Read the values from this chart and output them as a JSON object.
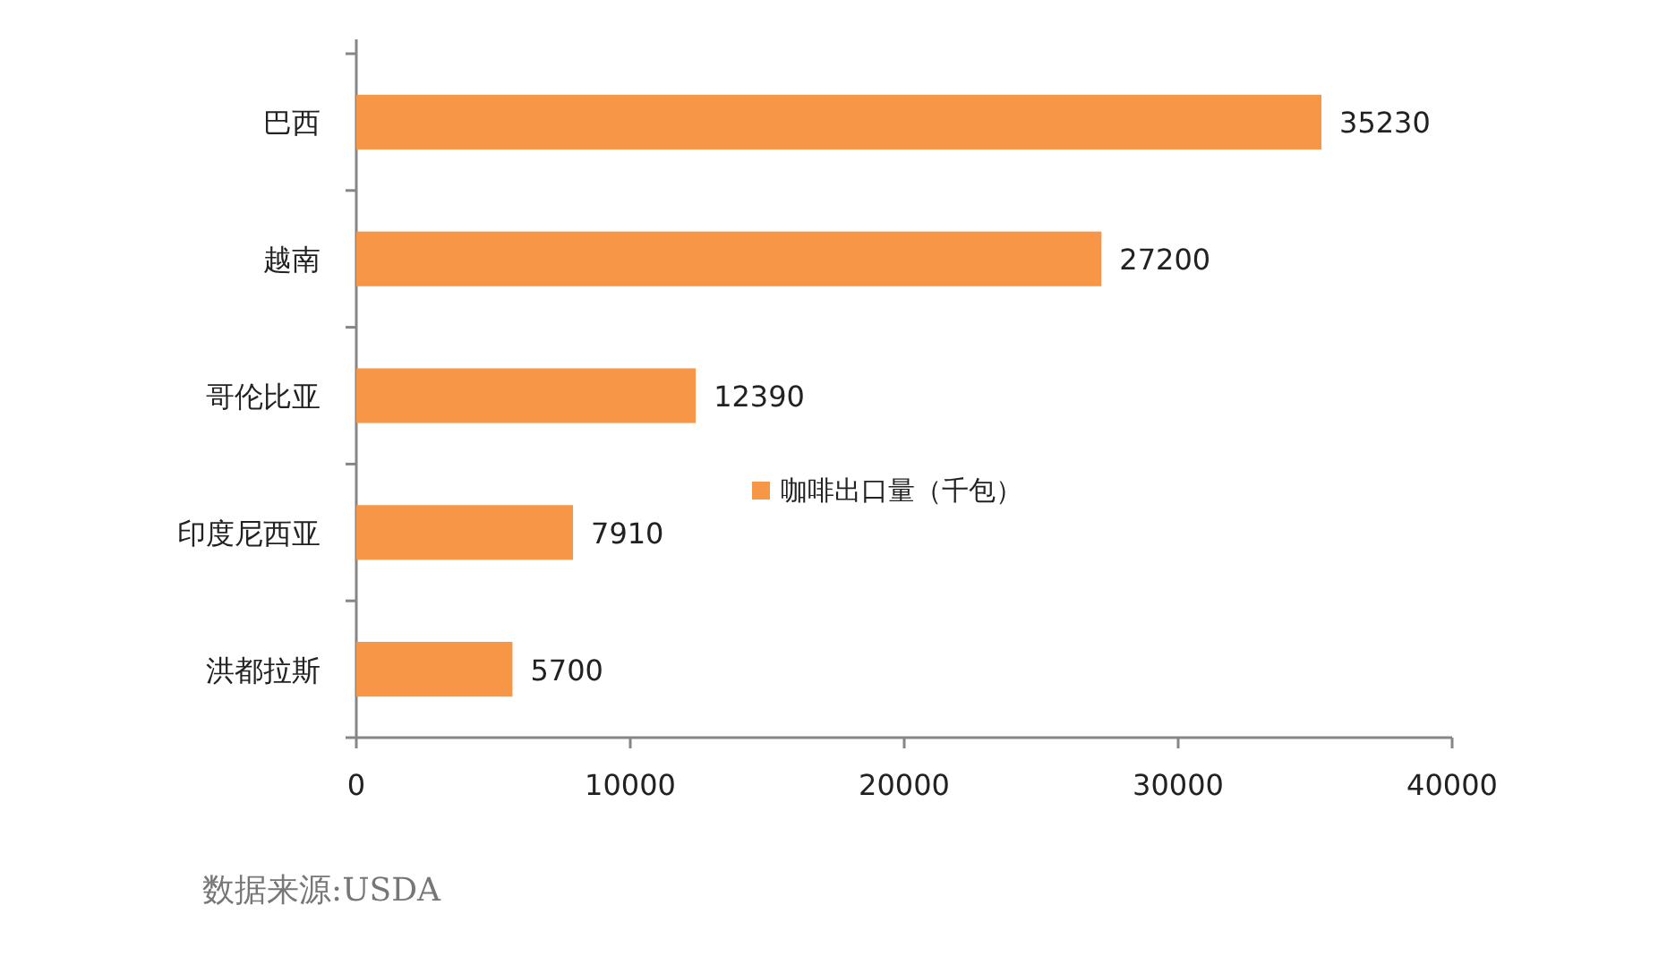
{
  "chart_data": {
    "type": "bar",
    "orientation": "horizontal",
    "categories": [
      "巴西",
      "越南",
      "哥伦比亚",
      "印度尼西亚",
      "洪都拉斯"
    ],
    "series": [
      {
        "name": "咖啡出口量（千包）",
        "color": "#f79646",
        "values": [
          35230,
          27200,
          12390,
          7910,
          5700
        ]
      }
    ],
    "xlim": [
      0,
      40000
    ],
    "xticks": [
      0,
      10000,
      20000,
      30000,
      40000
    ],
    "data_labels": true,
    "legend": "right",
    "grid": false,
    "annotations": [
      "数据来源:USDA"
    ]
  }
}
